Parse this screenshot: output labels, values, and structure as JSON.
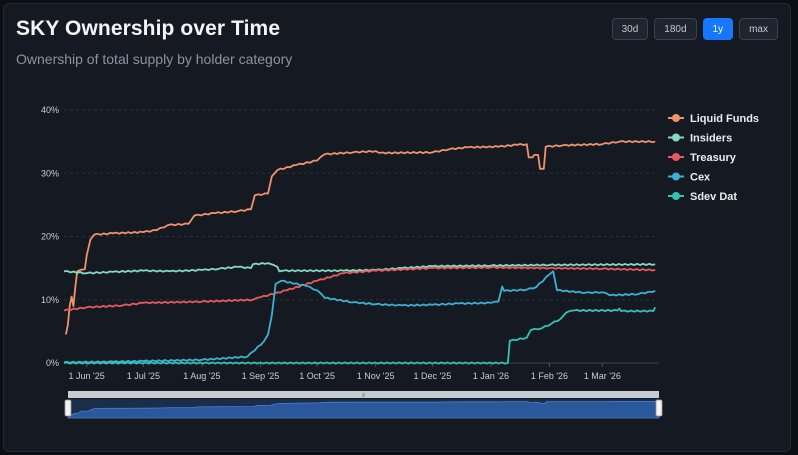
{
  "header": {
    "title": "SKY Ownership over Time",
    "subtitle": "Ownership of total supply by holder category"
  },
  "range_buttons": [
    {
      "label": "30d",
      "active": false
    },
    {
      "label": "180d",
      "active": false
    },
    {
      "label": "1y",
      "active": true
    },
    {
      "label": "max",
      "active": false
    }
  ],
  "colors": {
    "Liquid Funds": "#f0926a",
    "Insiders": "#84d9c2",
    "Treasury": "#e8595f",
    "Cex": "#3bb0d2",
    "Sdev Dat": "#35c2b3"
  },
  "chart_data": {
    "type": "line",
    "title": "SKY Ownership over Time",
    "subtitle": "Ownership of total supply by holder category",
    "x_type": "date",
    "xlim": [
      "2025-05-20",
      "2026-03-31"
    ],
    "ylim": [
      0,
      40
    ],
    "y_unit": "%",
    "y_ticks": [
      "0%",
      "10%",
      "20%",
      "30%",
      "40%"
    ],
    "x_ticks": [
      "1 Jun '25",
      "1 Jul '25",
      "1 Aug '25",
      "1 Sep '25",
      "1 Oct '25",
      "1 Nov '25",
      "1 Dec '25",
      "1 Jan '26",
      "1 Feb '26",
      "1 Mar '26"
    ],
    "x_tick_dates": [
      "2025-06-01",
      "2025-07-01",
      "2025-08-01",
      "2025-09-01",
      "2025-10-01",
      "2025-11-01",
      "2025-12-01",
      "2026-01-01",
      "2026-02-01",
      "2026-03-01"
    ],
    "grid": true,
    "legend_position": "right",
    "series": [
      {
        "name": "Liquid Funds",
        "points": [
          [
            "2025-05-21",
            4.5
          ],
          [
            "2025-05-22",
            6
          ],
          [
            "2025-05-23",
            9
          ],
          [
            "2025-05-24",
            10.5
          ],
          [
            "2025-05-25",
            9
          ],
          [
            "2025-05-26",
            12
          ],
          [
            "2025-05-27",
            14.5
          ],
          [
            "2025-05-31",
            14.8
          ],
          [
            "2025-06-01",
            17
          ],
          [
            "2025-06-03",
            19.5
          ],
          [
            "2025-06-05",
            20.3
          ],
          [
            "2025-06-15",
            20.5
          ],
          [
            "2025-07-01",
            20.7
          ],
          [
            "2025-07-08",
            21
          ],
          [
            "2025-07-14",
            21.8
          ],
          [
            "2025-07-25",
            22
          ],
          [
            "2025-07-28",
            23.3
          ],
          [
            "2025-08-08",
            23.7
          ],
          [
            "2025-08-20",
            24
          ],
          [
            "2025-08-27",
            24.3
          ],
          [
            "2025-08-29",
            26.5
          ],
          [
            "2025-09-05",
            26.8
          ],
          [
            "2025-09-07",
            29.5
          ],
          [
            "2025-09-10",
            30.5
          ],
          [
            "2025-09-20",
            31.3
          ],
          [
            "2025-10-01",
            32
          ],
          [
            "2025-10-05",
            33
          ],
          [
            "2025-10-20",
            33.3
          ],
          [
            "2025-11-01",
            33.5
          ],
          [
            "2025-11-03",
            33.2
          ],
          [
            "2025-12-01",
            33.3
          ],
          [
            "2025-12-10",
            33.8
          ],
          [
            "2025-12-20",
            34.1
          ],
          [
            "2026-01-05",
            34.2
          ],
          [
            "2026-01-15",
            34.5
          ],
          [
            "2026-01-20",
            34.6
          ],
          [
            "2026-01-21",
            32.5
          ],
          [
            "2026-01-23",
            32.5
          ],
          [
            "2026-01-24",
            32.9
          ],
          [
            "2026-01-26",
            32.9
          ],
          [
            "2026-01-27",
            30.7
          ],
          [
            "2026-01-29",
            30.7
          ],
          [
            "2026-01-30",
            34.2
          ],
          [
            "2026-02-08",
            34.4
          ],
          [
            "2026-03-01",
            34.6
          ],
          [
            "2026-03-10",
            35
          ],
          [
            "2026-03-29",
            35
          ]
        ]
      },
      {
        "name": "Insiders",
        "points": [
          [
            "2025-05-20",
            14.5
          ],
          [
            "2025-06-01",
            14.2
          ],
          [
            "2025-06-15",
            14.4
          ],
          [
            "2025-07-01",
            14.6
          ],
          [
            "2025-07-15",
            14.5
          ],
          [
            "2025-08-01",
            14.7
          ],
          [
            "2025-08-10",
            14.9
          ],
          [
            "2025-08-20",
            15.2
          ],
          [
            "2025-08-27",
            15
          ],
          [
            "2025-08-28",
            15.6
          ],
          [
            "2025-09-05",
            15.8
          ],
          [
            "2025-09-08",
            15.5
          ],
          [
            "2025-09-10",
            15.2
          ],
          [
            "2025-09-11",
            14.5
          ],
          [
            "2025-09-13",
            14.6
          ],
          [
            "2025-10-15",
            14.6
          ],
          [
            "2025-11-01",
            14.7
          ],
          [
            "2025-11-15",
            15
          ],
          [
            "2025-12-01",
            15.3
          ],
          [
            "2026-01-01",
            15.4
          ],
          [
            "2026-02-01",
            15.5
          ],
          [
            "2026-03-29",
            15.6
          ]
        ]
      },
      {
        "name": "Treasury",
        "points": [
          [
            "2025-05-20",
            8.3
          ],
          [
            "2025-06-01",
            8.8
          ],
          [
            "2025-06-20",
            9.1
          ],
          [
            "2025-07-01",
            9.5
          ],
          [
            "2025-08-01",
            9.7
          ],
          [
            "2025-08-28",
            10
          ],
          [
            "2025-09-01",
            10.4
          ],
          [
            "2025-09-15",
            11.5
          ],
          [
            "2025-10-01",
            13
          ],
          [
            "2025-10-15",
            14.2
          ],
          [
            "2025-11-01",
            14.6
          ],
          [
            "2025-12-01",
            15
          ],
          [
            "2026-01-01",
            15.1
          ],
          [
            "2026-02-01",
            15
          ],
          [
            "2026-03-01",
            14.9
          ],
          [
            "2026-03-29",
            14.7
          ]
        ]
      },
      {
        "name": "Cex",
        "points": [
          [
            "2025-05-20",
            0.1
          ],
          [
            "2025-06-15",
            0.2
          ],
          [
            "2025-07-01",
            0.3
          ],
          [
            "2025-08-01",
            0.5
          ],
          [
            "2025-08-25",
            1
          ],
          [
            "2025-08-29",
            2
          ],
          [
            "2025-09-03",
            3.5
          ],
          [
            "2025-09-05",
            4.5
          ],
          [
            "2025-09-07",
            7.5
          ],
          [
            "2025-09-09",
            12.5
          ],
          [
            "2025-09-12",
            13
          ],
          [
            "2025-09-25",
            12.2
          ],
          [
            "2025-10-01",
            11.5
          ],
          [
            "2025-10-05",
            10.3
          ],
          [
            "2025-10-20",
            9.6
          ],
          [
            "2025-11-01",
            9.3
          ],
          [
            "2025-11-15",
            9.1
          ],
          [
            "2025-12-01",
            9.2
          ],
          [
            "2025-12-15",
            9.4
          ],
          [
            "2026-01-01",
            9.5
          ],
          [
            "2026-01-05",
            9.7
          ],
          [
            "2026-01-07",
            12.1
          ],
          [
            "2026-01-08",
            11.4
          ],
          [
            "2026-01-20",
            11.6
          ],
          [
            "2026-01-25",
            12
          ],
          [
            "2026-02-01",
            14
          ],
          [
            "2026-02-03",
            14.5
          ],
          [
            "2026-02-05",
            11.5
          ],
          [
            "2026-02-20",
            11.1
          ],
          [
            "2026-03-01",
            11.2
          ],
          [
            "2026-03-05",
            10.7
          ],
          [
            "2026-03-20",
            10.9
          ],
          [
            "2026-03-29",
            11.4
          ]
        ]
      },
      {
        "name": "Sdev Dat",
        "points": [
          [
            "2025-05-20",
            0
          ],
          [
            "2026-01-10",
            0
          ],
          [
            "2026-01-11",
            3.5
          ],
          [
            "2026-01-20",
            4
          ],
          [
            "2026-01-22",
            5.2
          ],
          [
            "2026-01-28",
            5.5
          ],
          [
            "2026-02-02",
            6.2
          ],
          [
            "2026-02-07",
            7
          ],
          [
            "2026-02-10",
            8
          ],
          [
            "2026-02-14",
            8.3
          ],
          [
            "2026-03-09",
            8.3
          ],
          [
            "2026-03-10",
            8.6
          ],
          [
            "2026-03-11",
            8.2
          ],
          [
            "2026-03-28",
            8.2
          ],
          [
            "2026-03-29",
            8.8
          ]
        ]
      }
    ]
  }
}
